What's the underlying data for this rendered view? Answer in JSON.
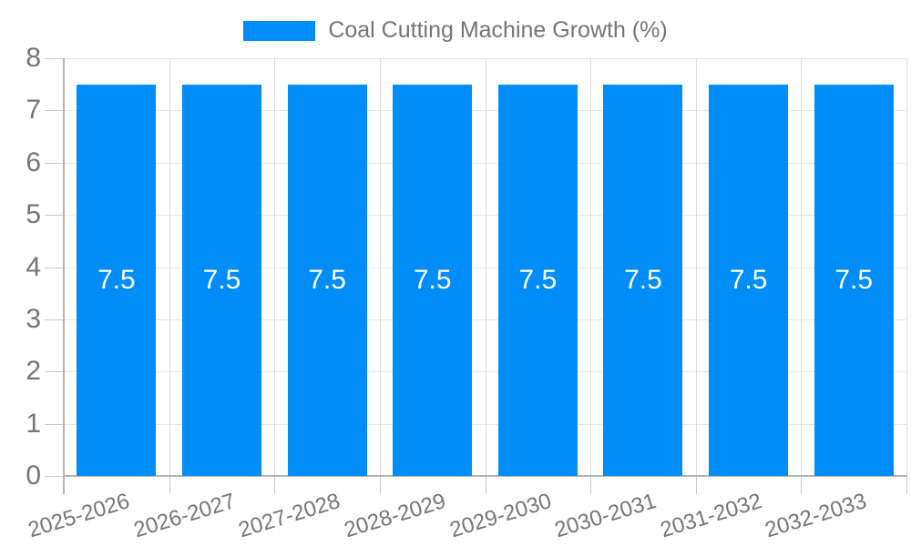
{
  "chart_data": {
    "type": "bar",
    "title": "",
    "legend_label": "Coal Cutting Machine Growth (%)",
    "legend_position": "top",
    "categories": [
      "2025-2026",
      "2026-2027",
      "2027-2028",
      "2028-2029",
      "2029-2030",
      "2030-2031",
      "2031-2032",
      "2032-2033"
    ],
    "values": [
      7.5,
      7.5,
      7.5,
      7.5,
      7.5,
      7.5,
      7.5,
      7.5
    ],
    "bar_labels": [
      "7.5",
      "7.5",
      "7.5",
      "7.5",
      "7.5",
      "7.5",
      "7.5",
      "7.5"
    ],
    "xlabel": "",
    "ylabel": "",
    "y_ticks": [
      0,
      1,
      2,
      3,
      4,
      5,
      6,
      7,
      8
    ],
    "ylim": [
      0,
      8
    ],
    "grid": true,
    "colors": {
      "bar": "#008df8",
      "grid_h": "#e6e6e6",
      "grid_v": "#dcdcdc",
      "axis": "#b3b3b3",
      "tick": "#c9c9c9",
      "text": "#757575",
      "bar_label": "#ffffff",
      "background": "#ffffff"
    }
  }
}
